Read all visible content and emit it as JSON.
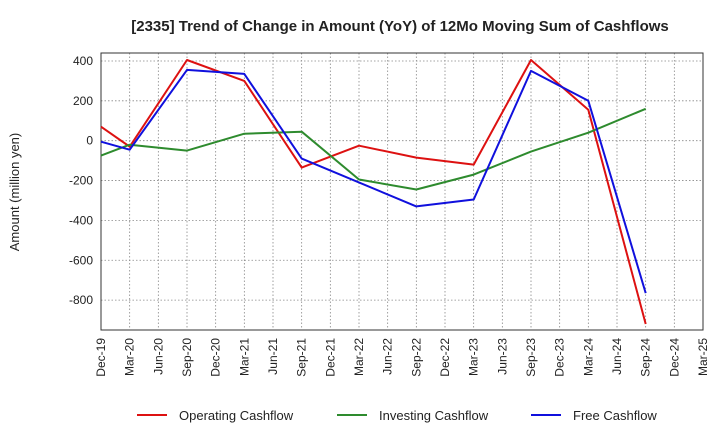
{
  "chart_data": {
    "type": "line",
    "title": "[2335]  Trend of Change in Amount (YoY) of 12Mo Moving Sum of Cashflows",
    "xlabel": "",
    "ylabel": "Amount (million yen)",
    "ylim": [
      -950,
      440
    ],
    "yticks": [
      400,
      200,
      0,
      -200,
      -400,
      -600,
      -800
    ],
    "ytick_labels": [
      "400",
      "200",
      "0",
      "-200",
      "-400",
      "-600",
      "-800"
    ],
    "categories": [
      "Dec-19",
      "Mar-20",
      "Jun-20",
      "Sep-20",
      "Dec-20",
      "Mar-21",
      "Jun-21",
      "Sep-21",
      "Dec-21",
      "Mar-22",
      "Jun-22",
      "Sep-22",
      "Dec-22",
      "Mar-23",
      "Jun-23",
      "Sep-23",
      "Dec-23",
      "Mar-24",
      "Jun-24",
      "Sep-24",
      "Dec-24",
      "Mar-25"
    ],
    "grid": true,
    "legend_position": "bottom",
    "series": [
      {
        "name": "Operating Cashflow",
        "color": "#dd1111",
        "values": [
          70,
          -30,
          null,
          405,
          null,
          300,
          null,
          -135,
          null,
          -25,
          null,
          -85,
          null,
          -120,
          null,
          405,
          null,
          155,
          null,
          -920,
          null,
          null
        ]
      },
      {
        "name": "Investing Cashflow",
        "color": "#2e8b2e",
        "values": [
          -75,
          -20,
          null,
          -50,
          null,
          35,
          null,
          45,
          null,
          -195,
          null,
          -245,
          null,
          -170,
          null,
          -55,
          null,
          40,
          null,
          160,
          null,
          null
        ]
      },
      {
        "name": "Free Cashflow",
        "color": "#1010dd",
        "values": [
          -5,
          -45,
          null,
          355,
          null,
          335,
          null,
          -90,
          null,
          null,
          null,
          -330,
          null,
          -295,
          null,
          350,
          null,
          200,
          null,
          -765,
          null,
          null
        ]
      }
    ]
  }
}
